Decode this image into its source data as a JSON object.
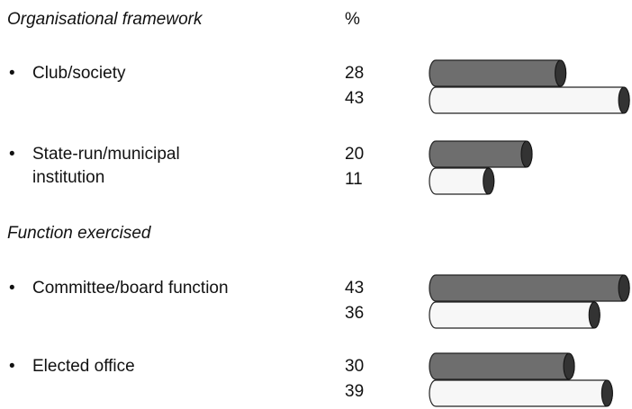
{
  "chart_data": [
    {
      "type": "bar",
      "title": "Organisational framework",
      "unit": "%",
      "categories": [
        "Club/society",
        "State-run/municipal\ninstitution"
      ],
      "series": [
        {
          "color": "#6e6e6e",
          "values": [
            28,
            20
          ]
        },
        {
          "color": "#f7f7f7",
          "values": [
            43,
            11
          ]
        }
      ]
    },
    {
      "type": "bar",
      "title": "Function exercised",
      "categories": [
        "Committee/board function",
        "Elected office"
      ],
      "series": [
        {
          "color": "#6e6e6e",
          "values": [
            43,
            30
          ]
        },
        {
          "color": "#f7f7f7",
          "values": [
            36,
            39
          ]
        }
      ]
    }
  ]
}
